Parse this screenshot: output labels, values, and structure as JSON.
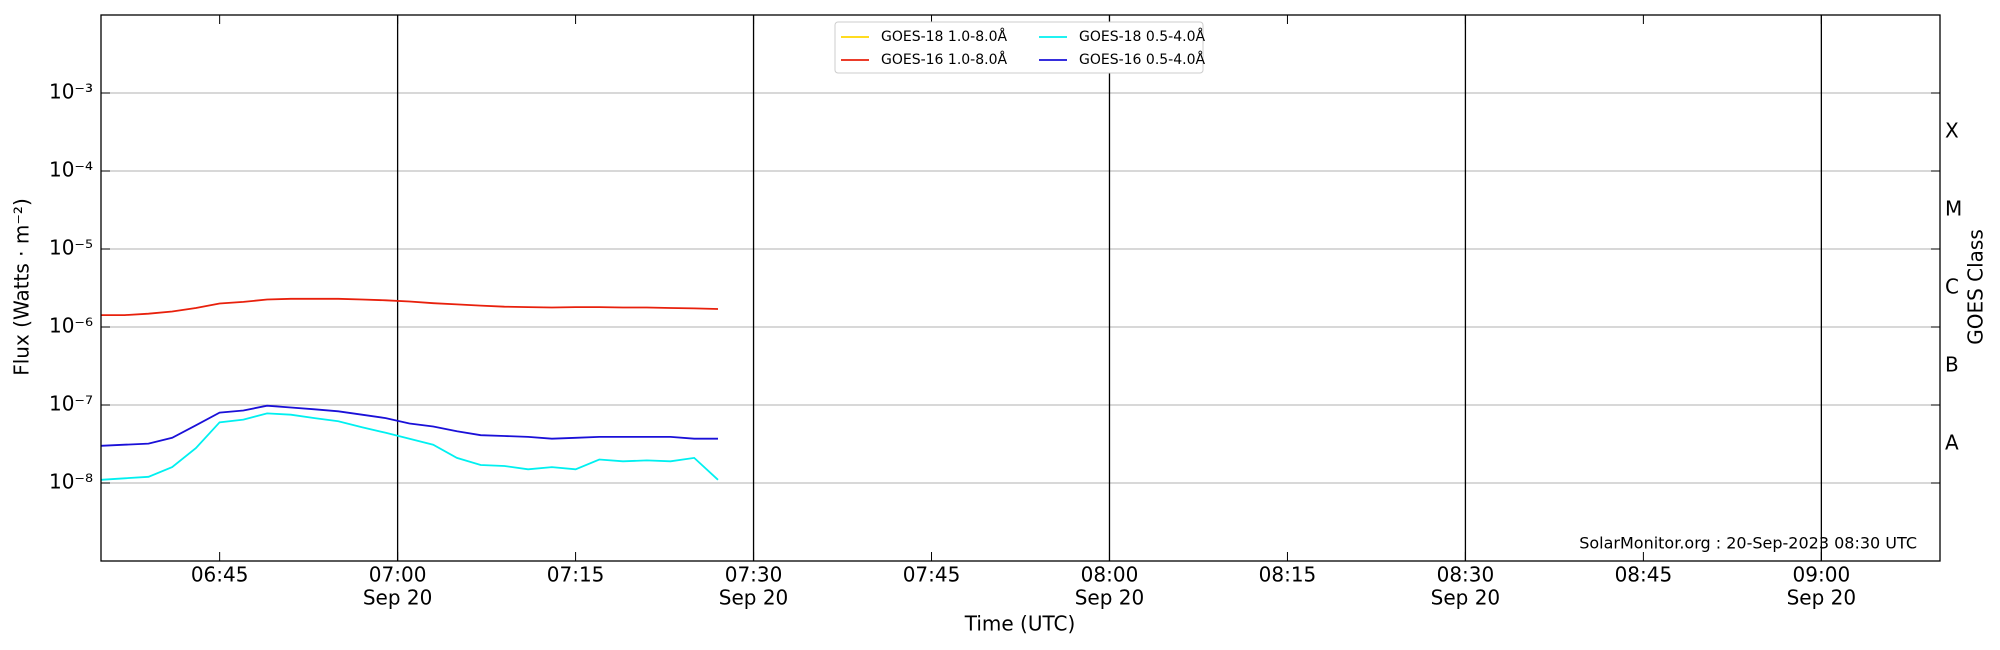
{
  "chart_data": {
    "type": "line",
    "y_label": "Flux (Watts · m⁻²)",
    "x_label": "Time (UTC)",
    "y2_label": "GOES Class",
    "annotation": "SolarMonitor.org : 20-Sep-2023 08:30 UTC",
    "log_y": true,
    "grid": true,
    "legend_position": "top-center",
    "xlim": [
      "06:35",
      "09:10"
    ],
    "xticks": [
      "06:45",
      {
        "value": "07:00",
        "label": [
          "07:00",
          "Sep 20"
        ]
      },
      "07:15",
      {
        "value": "07:30",
        "label": [
          "07:30",
          "Sep 20"
        ]
      },
      "07:45",
      {
        "value": "08:00",
        "label": [
          "08:00",
          "Sep 20"
        ]
      },
      "08:15",
      {
        "value": "08:30",
        "label": [
          "08:30",
          "Sep 20"
        ]
      },
      "08:45",
      {
        "value": "09:00",
        "label": [
          "09:00",
          "Sep 20"
        ]
      }
    ],
    "ylim": [
      1e-09,
      0.01
    ],
    "yticks": [
      {
        "value": 1e-08,
        "label": "10⁻⁸"
      },
      {
        "value": 1e-07,
        "label": "10⁻⁷"
      },
      {
        "value": 1e-06,
        "label": "10⁻⁶"
      },
      {
        "value": 1e-05,
        "label": "10⁻⁵"
      },
      {
        "value": 0.0001,
        "label": "10⁻⁴"
      },
      {
        "value": 0.001,
        "label": "10⁻³"
      }
    ],
    "goes_classes": [
      {
        "value": 1e-08,
        "label": "A"
      },
      {
        "value": 1e-07,
        "label": "B"
      },
      {
        "value": 1e-06,
        "label": "C"
      },
      {
        "value": 1e-05,
        "label": "M"
      },
      {
        "value": 0.0001,
        "label": "X"
      }
    ],
    "x": [
      "06:35",
      "06:37",
      "06:39",
      "06:41",
      "06:43",
      "06:45",
      "06:47",
      "06:49",
      "06:51",
      "06:53",
      "06:55",
      "06:57",
      "06:59",
      "07:01",
      "07:03",
      "07:05",
      "07:07",
      "07:09",
      "07:11",
      "07:13",
      "07:15",
      "07:17",
      "07:19",
      "07:21",
      "07:23",
      "07:25",
      "07:27"
    ],
    "series": [
      {
        "name": "GOES-18 1.0-8.0Å",
        "color": "#ffd700",
        "values": [
          null,
          null,
          null,
          null,
          null,
          null,
          null,
          null,
          null,
          null,
          null,
          null,
          null,
          null,
          null,
          null,
          null,
          null,
          null,
          null,
          null,
          null,
          null,
          null,
          null,
          null,
          null
        ]
      },
      {
        "name": "GOES-16 1.0-8.0Å",
        "color": "#e8200c",
        "values": [
          1.42e-06,
          1.42e-06,
          1.48e-06,
          1.58e-06,
          1.75e-06,
          2e-06,
          2.1e-06,
          2.25e-06,
          2.3e-06,
          2.3e-06,
          2.3e-06,
          2.25e-06,
          2.2e-06,
          2.12e-06,
          2.02e-06,
          1.95e-06,
          1.88e-06,
          1.82e-06,
          1.8e-06,
          1.78e-06,
          1.8e-06,
          1.8e-06,
          1.78e-06,
          1.78e-06,
          1.75e-06,
          1.73e-06,
          1.7e-06
        ]
      },
      {
        "name": "GOES-18 0.5-4.0Å",
        "color": "#00f0f0",
        "values": [
          1.1e-08,
          1.15e-08,
          1.2e-08,
          1.6e-08,
          2.8e-08,
          6e-08,
          6.5e-08,
          7.8e-08,
          7.5e-08,
          6.8e-08,
          6.2e-08,
          5.2e-08,
          4.4e-08,
          3.7e-08,
          3.1e-08,
          2.1e-08,
          1.7e-08,
          1.65e-08,
          1.5e-08,
          1.6e-08,
          1.5e-08,
          2e-08,
          1.9e-08,
          1.95e-08,
          1.9e-08,
          2.1e-08,
          1.1e-08
        ]
      },
      {
        "name": "GOES-16 0.5-4.0Å",
        "color": "#1a10d8",
        "values": [
          3e-08,
          3.1e-08,
          3.2e-08,
          3.8e-08,
          5.5e-08,
          8e-08,
          8.5e-08,
          9.8e-08,
          9.3e-08,
          8.8e-08,
          8.3e-08,
          7.5e-08,
          6.8e-08,
          5.8e-08,
          5.3e-08,
          4.6e-08,
          4.1e-08,
          4e-08,
          3.9e-08,
          3.7e-08,
          3.8e-08,
          3.9e-08,
          3.9e-08,
          3.9e-08,
          3.9e-08,
          3.7e-08,
          3.7e-08
        ]
      }
    ]
  }
}
